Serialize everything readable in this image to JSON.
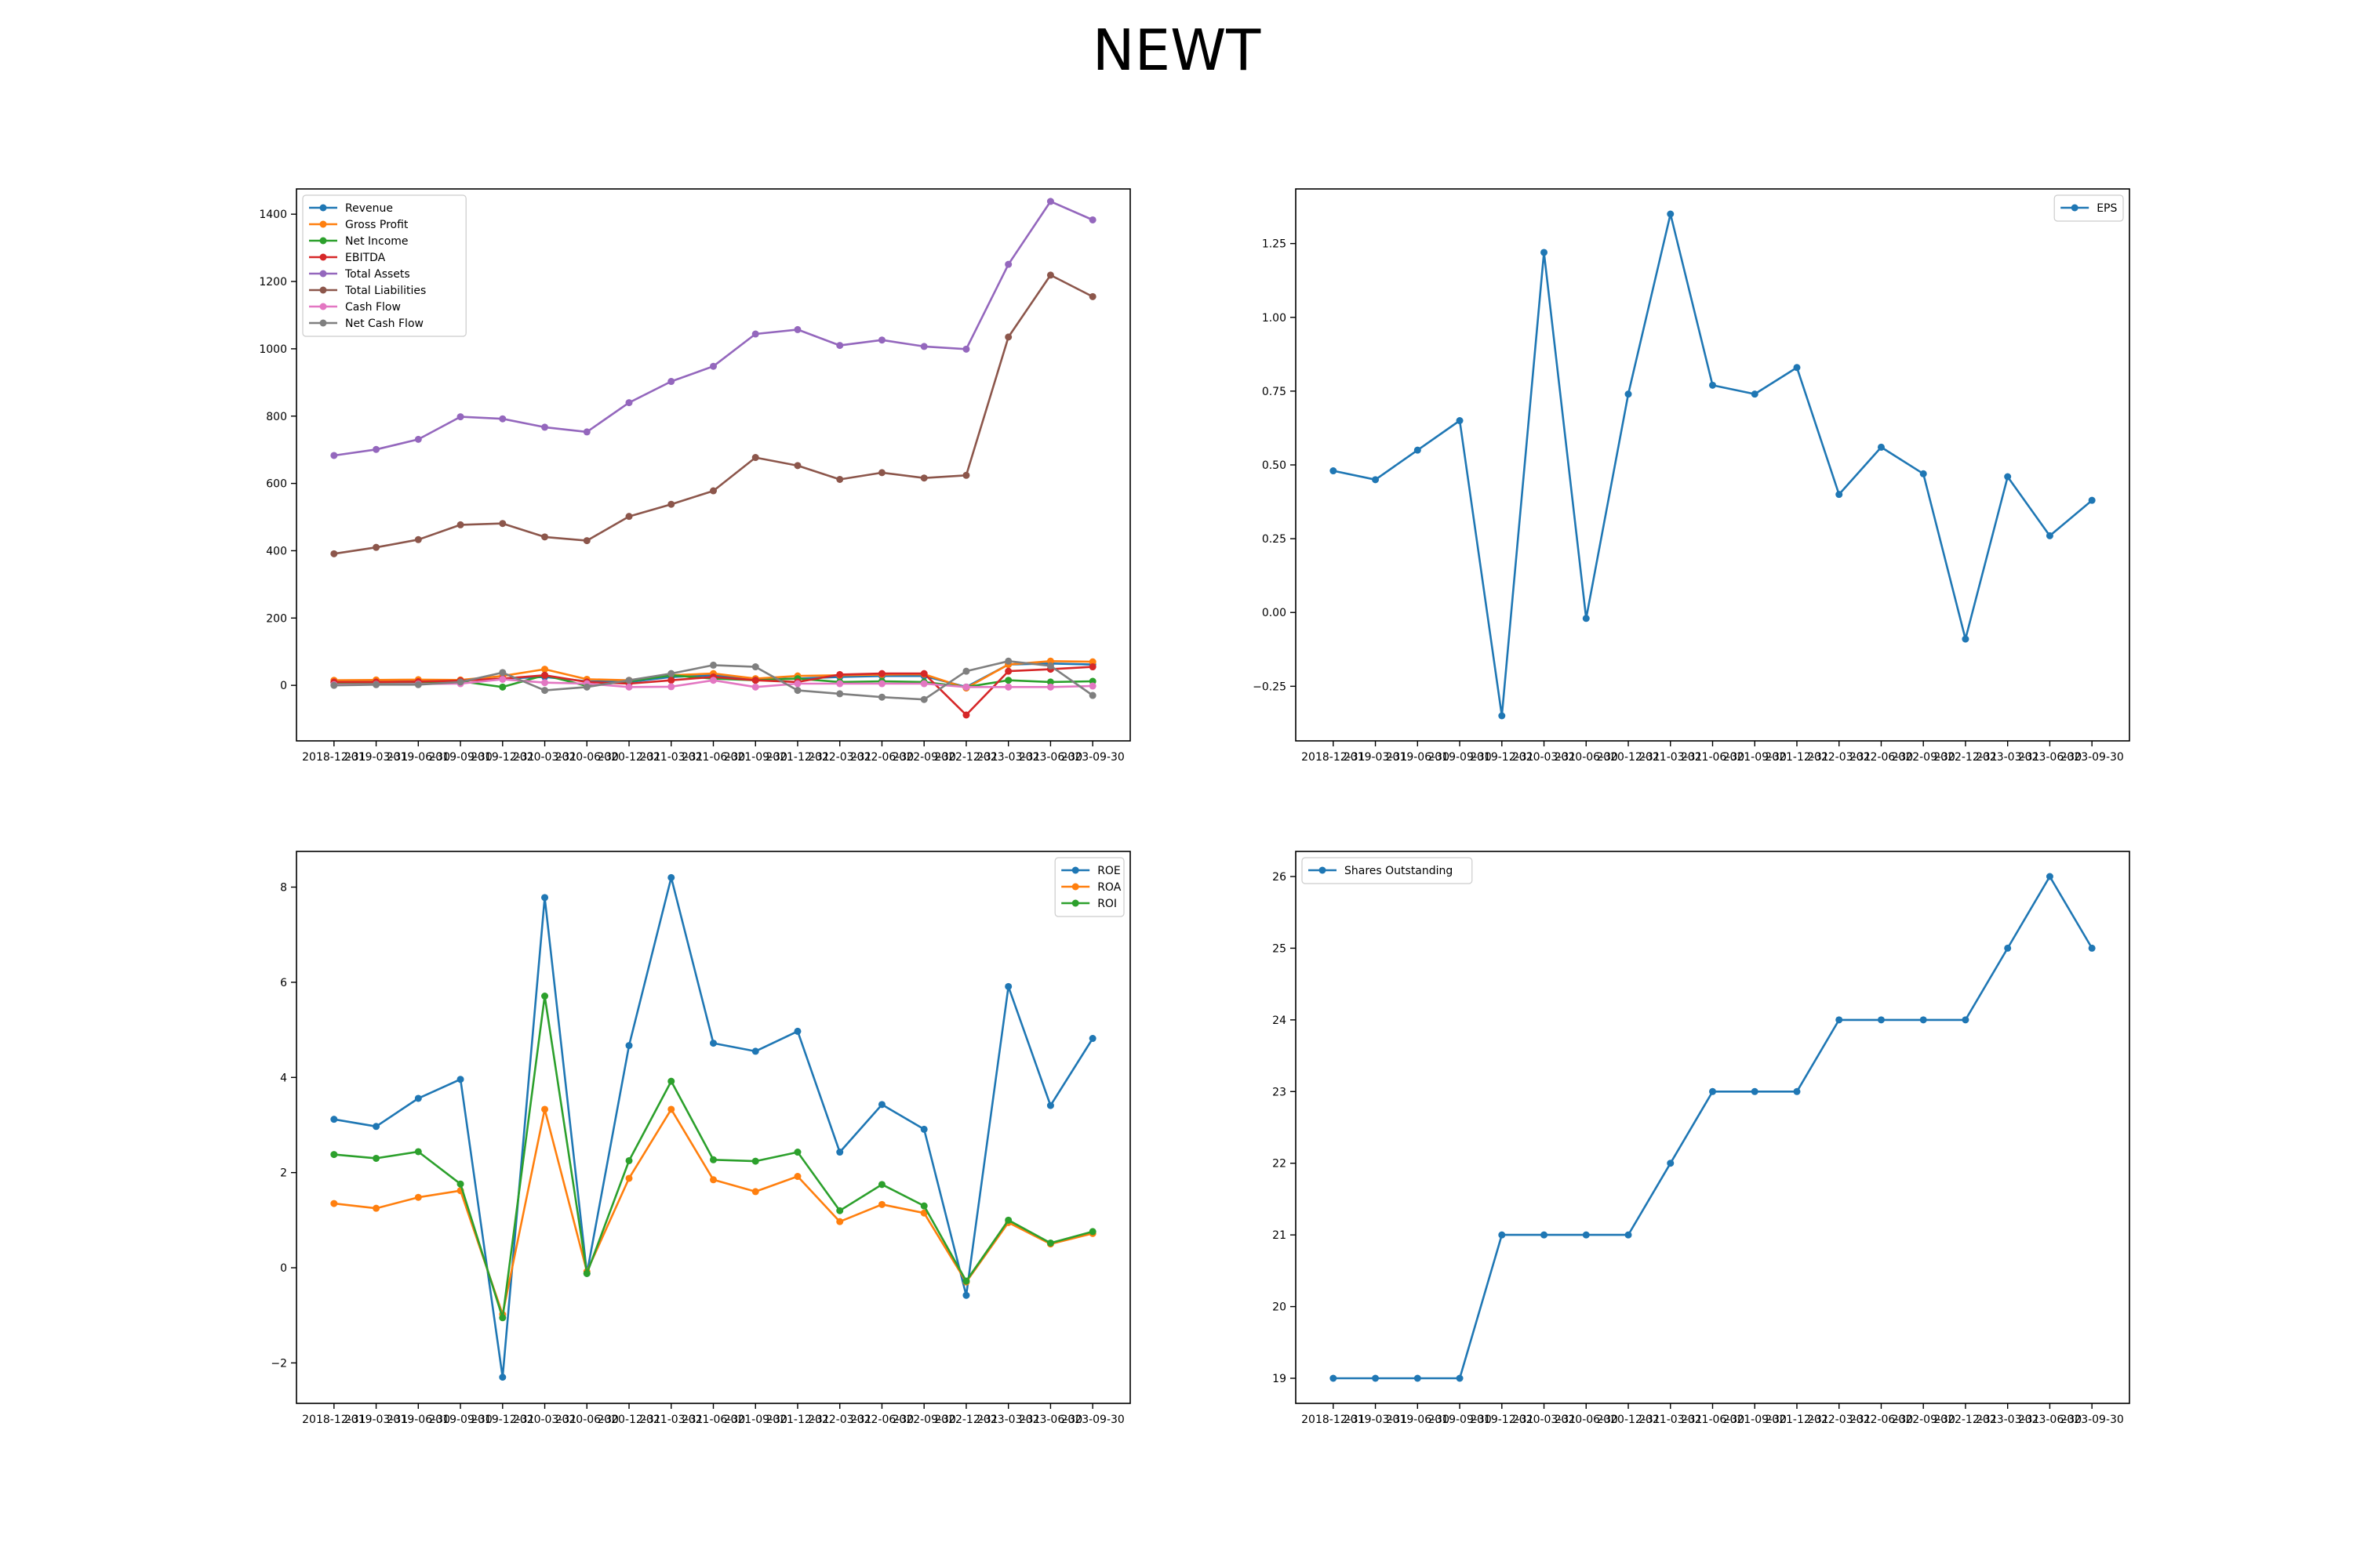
{
  "title": "NEWT",
  "colors": {
    "blue": "#1f77b4",
    "orange": "#ff7f0e",
    "green": "#2ca02c",
    "red": "#d62728",
    "purple": "#9467bd",
    "brown": "#8c564b",
    "pink": "#e377c2",
    "gray": "#7f7f7f"
  },
  "chart_data": [
    {
      "type": "line",
      "title": "",
      "xlabel": "",
      "ylabel": "",
      "x": [
        "2018-12-31",
        "2019-03-31",
        "2019-06-30",
        "2019-09-30",
        "2019-12-31",
        "2020-03-31",
        "2020-06-30",
        "2020-12-31",
        "2021-03-31",
        "2021-06-30",
        "2021-09-30",
        "2021-12-31",
        "2022-03-31",
        "2022-06-30",
        "2022-09-30",
        "2022-12-31",
        "2023-03-31",
        "2023-06-30",
        "2023-09-30"
      ],
      "ylim": [
        -165,
        1475
      ],
      "yticks": [
        0,
        200,
        400,
        600,
        800,
        1000,
        1200,
        1400
      ],
      "legend": "top-left",
      "series": [
        {
          "name": "Revenue",
          "color": "blue",
          "values": [
            10,
            12,
            12,
            15,
            20,
            25,
            12,
            10,
            25,
            30,
            18,
            20,
            25,
            28,
            28,
            -5,
            62,
            65,
            62
          ]
        },
        {
          "name": "Gross Profit",
          "color": "orange",
          "values": [
            15,
            16,
            17,
            16,
            28,
            48,
            18,
            15,
            30,
            35,
            20,
            28,
            30,
            32,
            33,
            -8,
            62,
            72,
            70
          ]
        },
        {
          "name": "Net Income",
          "color": "green",
          "values": [
            8,
            8,
            9,
            12,
            -5,
            30,
            -2,
            12,
            30,
            20,
            15,
            20,
            10,
            12,
            10,
            -5,
            15,
            10,
            12
          ]
        },
        {
          "name": "EBITDA",
          "color": "red",
          "values": [
            10,
            10,
            11,
            14,
            20,
            30,
            10,
            5,
            15,
            25,
            15,
            10,
            32,
            35,
            35,
            -88,
            42,
            48,
            55
          ]
        },
        {
          "name": "Total Assets",
          "color": "purple",
          "values": [
            683,
            701,
            731,
            798,
            792,
            767,
            753,
            840,
            903,
            948,
            1044,
            1057,
            1010,
            1026,
            1007,
            999,
            1251,
            1438,
            1383
          ]
        },
        {
          "name": "Total Liabilities",
          "color": "brown",
          "values": [
            391,
            410,
            433,
            477,
            481,
            441,
            430,
            502,
            538,
            578,
            677,
            653,
            612,
            632,
            616,
            624,
            1035,
            1219,
            1155
          ]
        },
        {
          "name": "Cash Flow",
          "color": "pink",
          "values": [
            2,
            3,
            4,
            5,
            18,
            8,
            5,
            -5,
            -4,
            15,
            -5,
            5,
            5,
            5,
            5,
            -5,
            -5,
            -5,
            -2
          ]
        },
        {
          "name": "Net Cash Flow",
          "color": "gray",
          "values": [
            0,
            2,
            2,
            10,
            38,
            -15,
            -5,
            15,
            35,
            60,
            55,
            -15,
            -25,
            -35,
            -42,
            42,
            72,
            58,
            -30
          ]
        }
      ]
    },
    {
      "type": "line",
      "title": "",
      "xlabel": "",
      "ylabel": "",
      "x": [
        "2018-12-31",
        "2019-03-31",
        "2019-06-30",
        "2019-09-30",
        "2019-12-31",
        "2020-03-31",
        "2020-06-30",
        "2020-12-31",
        "2021-03-31",
        "2021-06-30",
        "2021-09-30",
        "2021-12-31",
        "2022-03-31",
        "2022-06-30",
        "2022-09-30",
        "2022-12-31",
        "2023-03-31",
        "2023-06-30",
        "2023-09-30"
      ],
      "ylim": [
        -0.435,
        1.435
      ],
      "yticks": [
        -0.25,
        0.0,
        0.25,
        0.5,
        0.75,
        1.0,
        1.25
      ],
      "legend": "top-right",
      "series": [
        {
          "name": "EPS",
          "color": "blue",
          "values": [
            0.48,
            0.45,
            0.55,
            0.65,
            -0.35,
            1.22,
            -0.02,
            0.74,
            1.35,
            0.77,
            0.74,
            0.83,
            0.4,
            0.56,
            0.47,
            -0.09,
            0.46,
            0.26,
            0.38
          ]
        }
      ]
    },
    {
      "type": "line",
      "title": "",
      "xlabel": "",
      "ylabel": "",
      "x": [
        "2018-12-31",
        "2019-03-31",
        "2019-06-30",
        "2019-09-30",
        "2019-12-31",
        "2020-03-31",
        "2020-06-30",
        "2020-12-31",
        "2021-03-31",
        "2021-06-30",
        "2021-09-30",
        "2021-12-31",
        "2022-03-31",
        "2022-06-30",
        "2022-09-30",
        "2022-12-31",
        "2023-03-31",
        "2023-06-30",
        "2023-09-30"
      ],
      "ylim": [
        -2.85,
        8.75
      ],
      "yticks": [
        -2,
        0,
        2,
        4,
        6,
        8
      ],
      "legend": "top-right",
      "series": [
        {
          "name": "ROE",
          "color": "blue",
          "values": [
            3.12,
            2.97,
            3.56,
            3.96,
            -2.3,
            7.78,
            -0.12,
            4.67,
            8.2,
            4.72,
            4.55,
            4.97,
            2.43,
            3.43,
            2.91,
            -0.58,
            5.91,
            3.41,
            4.82
          ]
        },
        {
          "name": "ROA",
          "color": "orange",
          "values": [
            1.35,
            1.25,
            1.48,
            1.62,
            -0.98,
            3.33,
            -0.08,
            1.88,
            3.33,
            1.85,
            1.6,
            1.92,
            0.97,
            1.33,
            1.15,
            -0.3,
            0.95,
            0.5,
            0.72
          ]
        },
        {
          "name": "ROI",
          "color": "green",
          "values": [
            2.38,
            2.3,
            2.44,
            1.76,
            -1.05,
            5.71,
            -0.12,
            2.25,
            3.92,
            2.27,
            2.24,
            2.43,
            1.2,
            1.75,
            1.3,
            -0.28,
            1.0,
            0.52,
            0.76
          ]
        }
      ]
    },
    {
      "type": "line",
      "title": "",
      "xlabel": "",
      "ylabel": "",
      "x": [
        "2018-12-31",
        "2019-03-31",
        "2019-06-30",
        "2019-09-30",
        "2019-12-31",
        "2020-03-31",
        "2020-06-30",
        "2020-12-31",
        "2021-03-31",
        "2021-06-30",
        "2021-09-30",
        "2021-12-31",
        "2022-03-31",
        "2022-06-30",
        "2022-09-30",
        "2022-12-31",
        "2023-03-31",
        "2023-06-30",
        "2023-09-30"
      ],
      "ylim": [
        18.65,
        26.35
      ],
      "yticks": [
        19,
        20,
        21,
        22,
        23,
        24,
        25,
        26
      ],
      "legend": "top-left",
      "series": [
        {
          "name": "Shares Outstanding",
          "color": "blue",
          "values": [
            19,
            19,
            19,
            19,
            21,
            21,
            21,
            21,
            22,
            23,
            23,
            23,
            24,
            24,
            24,
            24,
            25,
            26,
            25
          ]
        }
      ]
    }
  ]
}
